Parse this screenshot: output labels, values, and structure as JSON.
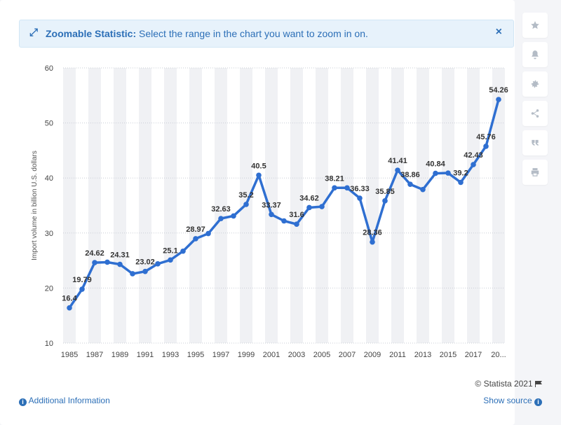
{
  "banner": {
    "title": "Zoomable Statistic:",
    "text": " Select the range in the chart you want to zoom in on.",
    "close_glyph": "×",
    "zoom_glyph": "⤢"
  },
  "sidebar": {
    "icons": [
      "star-icon",
      "bell-icon",
      "gear-icon",
      "share-icon",
      "quote-icon",
      "print-icon"
    ]
  },
  "footer": {
    "copyright": "© Statista 2021",
    "additional_info": "Additional Information",
    "show_source": "Show source"
  },
  "colors": {
    "line": "#2f6fd1",
    "band": "#f0f1f4",
    "accent": "#2c6fb7"
  },
  "chart_data": {
    "type": "line",
    "ylabel": "Import volume in billion U.S. dollars",
    "xlabel": "",
    "ylim": [
      10,
      60
    ],
    "yticks": [
      10,
      20,
      30,
      40,
      50,
      60
    ],
    "x_tick_labels": [
      "1985",
      "1987",
      "1989",
      "1991",
      "1993",
      "1995",
      "1997",
      "1999",
      "2001",
      "2003",
      "2005",
      "2007",
      "2009",
      "2011",
      "2013",
      "2015",
      "2017",
      "20..."
    ],
    "x": [
      1985,
      1986,
      1987,
      1988,
      1989,
      1990,
      1991,
      1992,
      1993,
      1994,
      1995,
      1996,
      1997,
      1998,
      1999,
      2000,
      2001,
      2002,
      2003,
      2004,
      2005,
      2006,
      2007,
      2008,
      2009,
      2010,
      2011,
      2012,
      2013,
      2014,
      2015,
      2016,
      2017,
      2018,
      2019
    ],
    "values": [
      16.4,
      19.79,
      24.62,
      24.7,
      24.31,
      22.6,
      23.02,
      24.4,
      25.1,
      26.7,
      28.97,
      29.9,
      32.63,
      33.1,
      35.2,
      40.5,
      33.37,
      32.2,
      31.6,
      34.62,
      34.8,
      38.21,
      38.2,
      36.33,
      28.36,
      35.85,
      41.41,
      38.86,
      37.9,
      40.84,
      40.9,
      39.2,
      42.43,
      45.76,
      54.26
    ],
    "data_labels": [
      {
        "i": 0,
        "text": "16.4"
      },
      {
        "i": 1,
        "text": "19.79"
      },
      {
        "i": 2,
        "text": "24.62"
      },
      {
        "i": 4,
        "text": "24.31"
      },
      {
        "i": 6,
        "text": "23.02"
      },
      {
        "i": 8,
        "text": "25.1"
      },
      {
        "i": 10,
        "text": "28.97"
      },
      {
        "i": 12,
        "text": "32.63"
      },
      {
        "i": 14,
        "text": "35.2"
      },
      {
        "i": 15,
        "text": "40.5"
      },
      {
        "i": 16,
        "text": "33.37"
      },
      {
        "i": 18,
        "text": "31.6"
      },
      {
        "i": 19,
        "text": "34.62"
      },
      {
        "i": 21,
        "text": "38.21"
      },
      {
        "i": 23,
        "text": "36.33"
      },
      {
        "i": 24,
        "text": "28.36"
      },
      {
        "i": 25,
        "text": "35.85"
      },
      {
        "i": 26,
        "text": "41.41"
      },
      {
        "i": 27,
        "text": "38.86"
      },
      {
        "i": 29,
        "text": "40.84"
      },
      {
        "i": 31,
        "text": "39.2"
      },
      {
        "i": 32,
        "text": "42.43"
      },
      {
        "i": 33,
        "text": "45.76"
      },
      {
        "i": 34,
        "text": "54.26"
      }
    ],
    "grid": true,
    "alternating_bands": true
  }
}
